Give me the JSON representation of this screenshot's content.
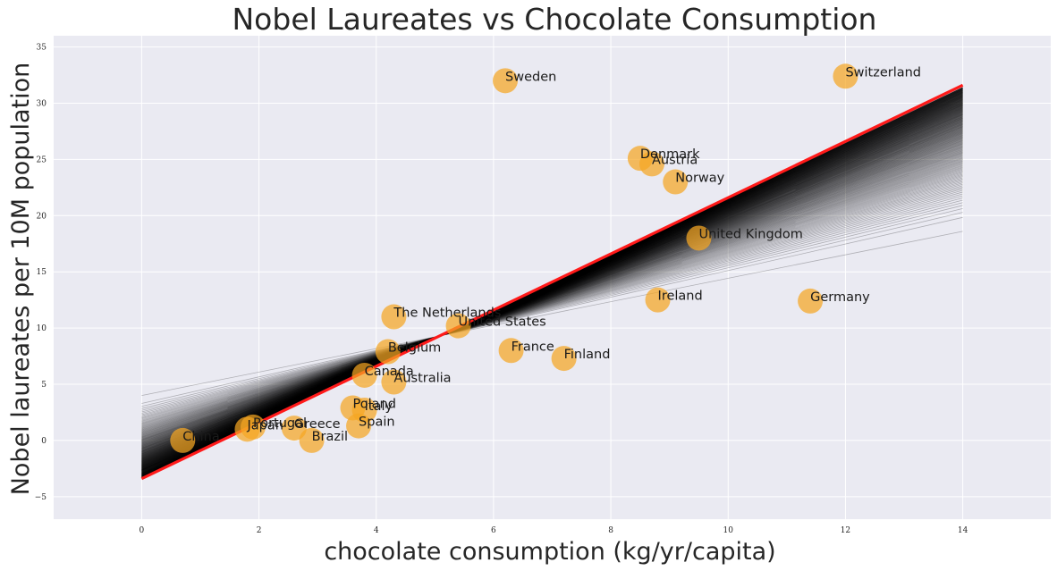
{
  "chart_data": {
    "type": "scatter",
    "title": "Nobel Laureates vs Chocolate Consumption",
    "xlabel": "chocolate consumption (kg/yr/capita)",
    "ylabel": "Nobel laureates per 10M population",
    "xlim": [
      -1.5,
      15.5
    ],
    "ylim": [
      -7,
      36
    ],
    "xticks": [
      0,
      2,
      4,
      6,
      8,
      10,
      12,
      14
    ],
    "yticks": [
      -5,
      0,
      5,
      10,
      15,
      20,
      25,
      30,
      35
    ],
    "grid": true,
    "colors": {
      "background": "#eaeaf2",
      "grid": "#ffffff",
      "points": "#f5a623",
      "fit_line": "#ff1a1a",
      "fan_lines": "#000000"
    },
    "points": [
      {
        "label": "Sweden",
        "x": 6.2,
        "y": 32.0
      },
      {
        "label": "Switzerland",
        "x": 12.0,
        "y": 32.4
      },
      {
        "label": "Denmark",
        "x": 8.5,
        "y": 25.1
      },
      {
        "label": "Austria",
        "x": 8.7,
        "y": 24.6
      },
      {
        "label": "Norway",
        "x": 9.1,
        "y": 23.0
      },
      {
        "label": "United Kingdom",
        "x": 9.5,
        "y": 18.0
      },
      {
        "label": "Ireland",
        "x": 8.8,
        "y": 12.5
      },
      {
        "label": "Germany",
        "x": 11.4,
        "y": 12.4
      },
      {
        "label": "The Netherlands",
        "x": 4.3,
        "y": 11.0
      },
      {
        "label": "United States",
        "x": 5.4,
        "y": 10.2
      },
      {
        "label": "Belgium",
        "x": 4.2,
        "y": 7.9
      },
      {
        "label": "France",
        "x": 6.3,
        "y": 8.0
      },
      {
        "label": "Finland",
        "x": 7.2,
        "y": 7.3
      },
      {
        "label": "Canada",
        "x": 3.8,
        "y": 5.8
      },
      {
        "label": "Australia",
        "x": 4.3,
        "y": 5.2
      },
      {
        "label": "Poland",
        "x": 3.6,
        "y": 2.9
      },
      {
        "label": "Italy",
        "x": 3.8,
        "y": 2.7
      },
      {
        "label": "Spain",
        "x": 3.7,
        "y": 1.3
      },
      {
        "label": "Portugal",
        "x": 1.9,
        "y": 1.2
      },
      {
        "label": "Japan",
        "x": 1.8,
        "y": 1.0
      },
      {
        "label": "Greece",
        "x": 2.6,
        "y": 1.1
      },
      {
        "label": "Brazil",
        "x": 2.9,
        "y": 0.0
      },
      {
        "label": "China",
        "x": 0.7,
        "y": 0.0
      }
    ],
    "fit_line": {
      "x": [
        0,
        14
      ],
      "y": [
        -3.4,
        31.6
      ]
    },
    "fan_lines": {
      "count": 180,
      "x": [
        0,
        14
      ],
      "start_intercepts": [
        4.0,
        -3.3
      ],
      "end_values": [
        18.6,
        31.4
      ]
    }
  }
}
